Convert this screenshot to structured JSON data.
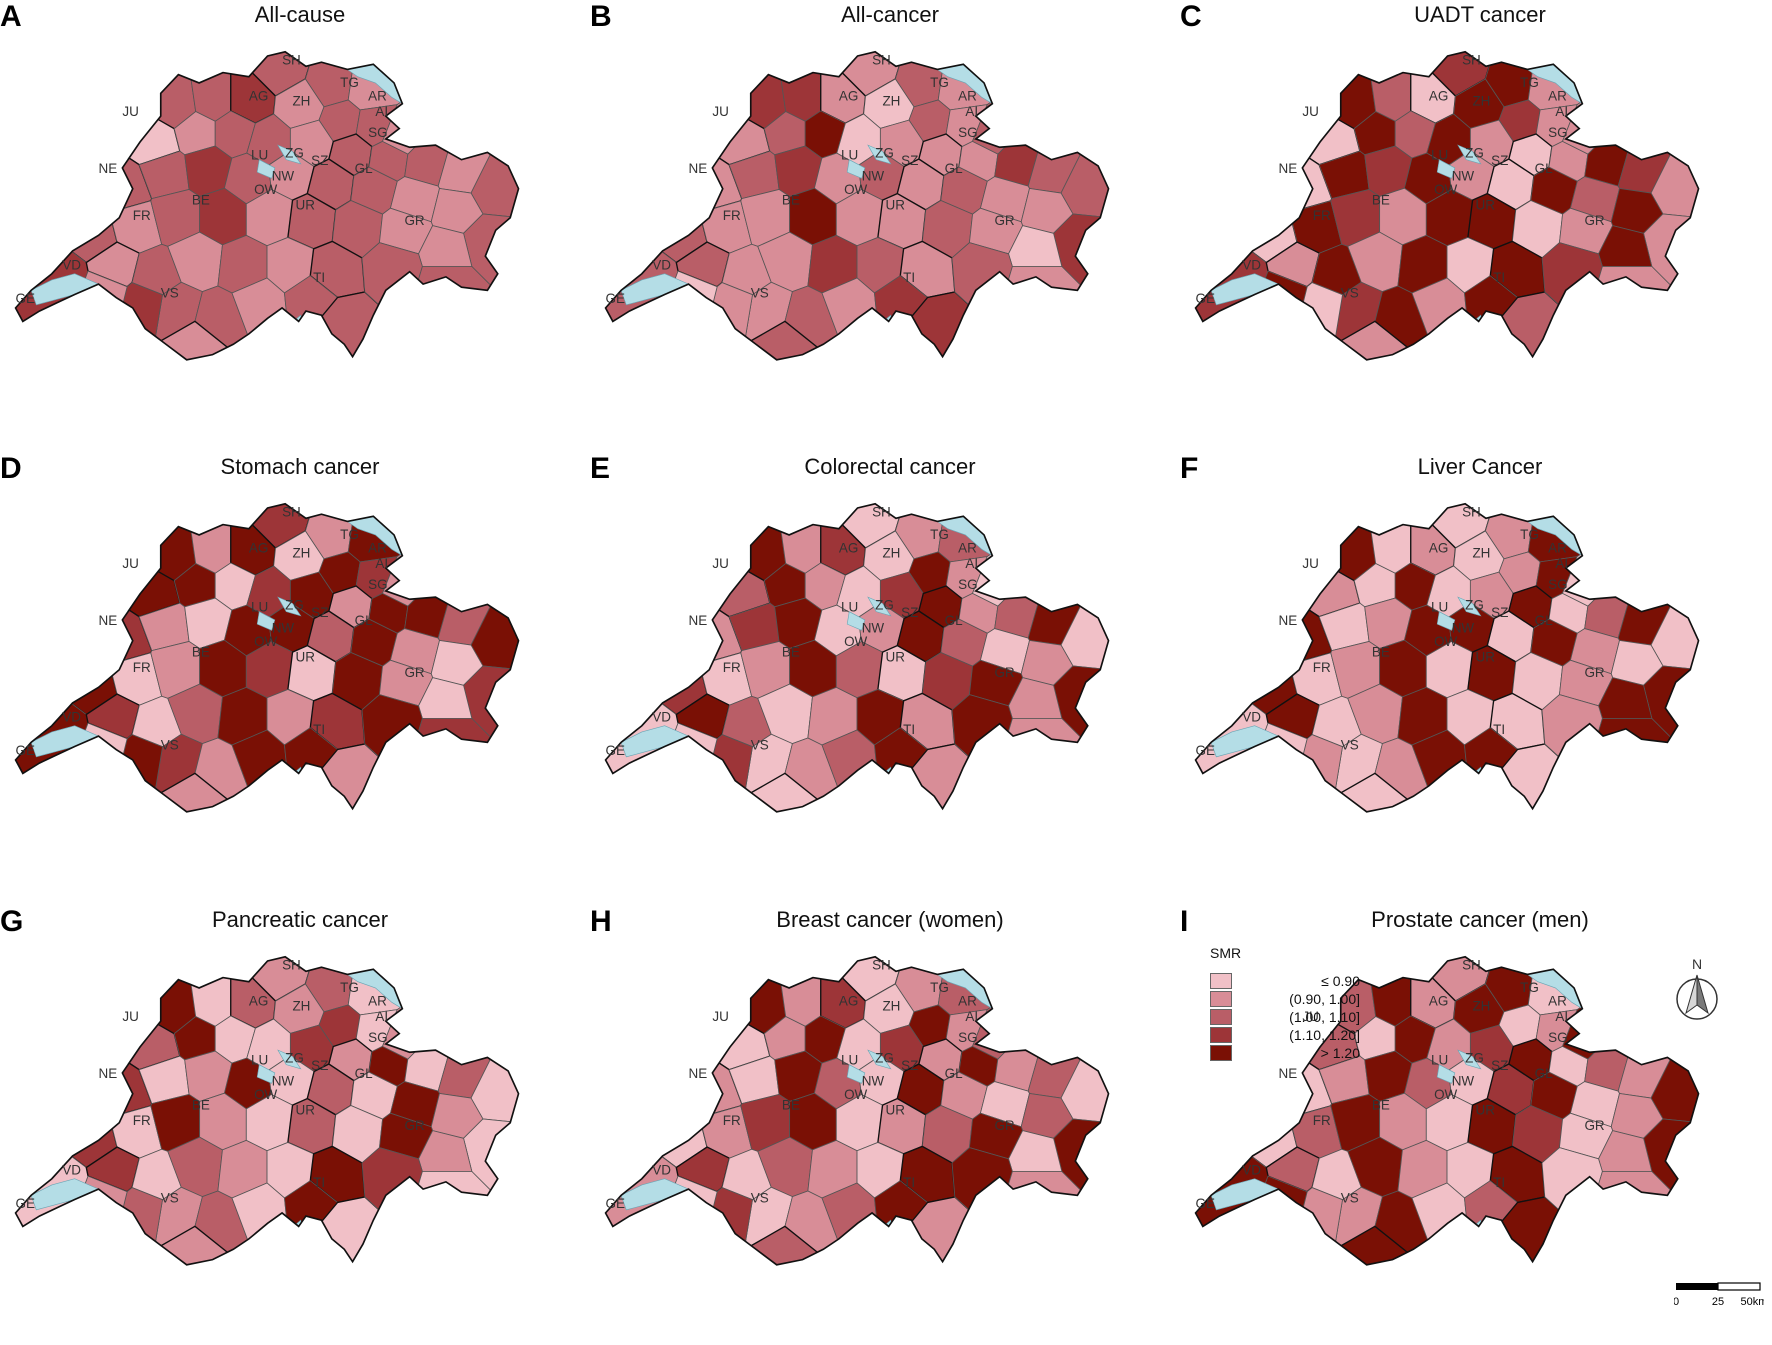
{
  "colors": {
    "c1": "#f1c0c7",
    "c2": "#d88d97",
    "c3": "#b95e67",
    "c4": "#9d3538",
    "c5": "#7a1005",
    "lake": "#b4dde6"
  },
  "panels": [
    {
      "letter": "A",
      "title": "All-cause"
    },
    {
      "letter": "B",
      "title": "All-cancer"
    },
    {
      "letter": "C",
      "title": "UADT cancer"
    },
    {
      "letter": "D",
      "title": "Stomach cancer"
    },
    {
      "letter": "E",
      "title": "Colorectal cancer"
    },
    {
      "letter": "F",
      "title": "Liver Cancer"
    },
    {
      "letter": "G",
      "title": "Pancreatic cancer"
    },
    {
      "letter": "H",
      "title": "Breast cancer (women)"
    },
    {
      "letter": "I",
      "title": "Prostate cancer (men)"
    }
  ],
  "canton_labels": [
    "SH",
    "TG",
    "JU",
    "AG",
    "ZH",
    "AR",
    "AI",
    "SG",
    "NE",
    "LU",
    "ZG",
    "SZ",
    "GL",
    "BE",
    "OW",
    "NW",
    "UR",
    "GR",
    "FR",
    "VD",
    "TI",
    "VS",
    "GE"
  ],
  "legend": {
    "title": "SMR",
    "classes": [
      "≤ 0.90",
      "(0.90, 1.00]",
      "(1.00, 1.10]",
      "(1.10, 1.20]",
      "> 1.20"
    ]
  },
  "north_label": "N",
  "scale": {
    "labels": [
      "0",
      "25",
      "50km"
    ]
  },
  "region_levels": [
    [
      3,
      3,
      2,
      3,
      3,
      4,
      2,
      3,
      3,
      2,
      1,
      2,
      3,
      3,
      2,
      3,
      3,
      3,
      2,
      3,
      3,
      3,
      4,
      3,
      2,
      3,
      3,
      2,
      2,
      3,
      3,
      2,
      3,
      4,
      2,
      3,
      3,
      2,
      2,
      4,
      2,
      3,
      2,
      3,
      2,
      3
    ],
    [
      2,
      3,
      2,
      4,
      4,
      2,
      1,
      3,
      2,
      3,
      2,
      3,
      5,
      1,
      2,
      2,
      2,
      4,
      3,
      3,
      2,
      3,
      4,
      2,
      3,
      2,
      3,
      2,
      2,
      4,
      3,
      2,
      2,
      5,
      2,
      2,
      3,
      2,
      1,
      3,
      3,
      2,
      2,
      4,
      3,
      2
    ],
    [
      4,
      5,
      2,
      5,
      3,
      1,
      5,
      4,
      2,
      2,
      1,
      5,
      3,
      5,
      2,
      1,
      2,
      5,
      4,
      2,
      1,
      5,
      4,
      5,
      2,
      1,
      5,
      3,
      5,
      2,
      1,
      5,
      4,
      2,
      5,
      5,
      1,
      2,
      5,
      4,
      2,
      5,
      2,
      5,
      1,
      5
    ],
    [
      4,
      2,
      5,
      5,
      2,
      5,
      1,
      5,
      4,
      2,
      5,
      5,
      1,
      4,
      5,
      2,
      5,
      5,
      3,
      5,
      4,
      2,
      1,
      5,
      5,
      3,
      5,
      2,
      1,
      4,
      5,
      1,
      2,
      5,
      4,
      1,
      5,
      2,
      1,
      5,
      4,
      1,
      3,
      5,
      2,
      4
    ],
    [
      1,
      2,
      3,
      5,
      2,
      4,
      1,
      5,
      2,
      1,
      3,
      5,
      2,
      1,
      4,
      5,
      2,
      3,
      5,
      1,
      2,
      4,
      5,
      1,
      2,
      5,
      3,
      1,
      2,
      5,
      4,
      1,
      2,
      5,
      3,
      1,
      4,
      5,
      2,
      1,
      5,
      3,
      1,
      2,
      5,
      2
    ],
    [
      1,
      2,
      5,
      5,
      1,
      2,
      1,
      2,
      5,
      1,
      2,
      1,
      5,
      1,
      2,
      5,
      1,
      3,
      5,
      1,
      5,
      1,
      2,
      5,
      5,
      1,
      5,
      2,
      1,
      5,
      5,
      1,
      2,
      5,
      1,
      5,
      1,
      2,
      5,
      1,
      5,
      1,
      2,
      5,
      1,
      1
    ],
    [
      2,
      3,
      1,
      5,
      1,
      3,
      2,
      4,
      1,
      2,
      3,
      5,
      1,
      1,
      4,
      2,
      5,
      1,
      3,
      1,
      4,
      1,
      2,
      5,
      1,
      3,
      1,
      5,
      2,
      1,
      4,
      1,
      5,
      2,
      1,
      3,
      1,
      5,
      2,
      1,
      4,
      1,
      3,
      2,
      1,
      5
    ],
    [
      1,
      2,
      3,
      5,
      2,
      4,
      1,
      5,
      2,
      3,
      1,
      2,
      5,
      1,
      4,
      2,
      5,
      2,
      3,
      1,
      2,
      1,
      5,
      3,
      1,
      5,
      2,
      1,
      3,
      5,
      1,
      2,
      4,
      5,
      1,
      2,
      3,
      5,
      1,
      2,
      4,
      1,
      3,
      2,
      1,
      5
    ],
    [
      2,
      5,
      1,
      3,
      5,
      2,
      5,
      1,
      2,
      5,
      3,
      1,
      5,
      2,
      4,
      5,
      1,
      3,
      2,
      5,
      1,
      2,
      5,
      3,
      1,
      4,
      5,
      1,
      2,
      5,
      1,
      3,
      5,
      2,
      1,
      5,
      4,
      1,
      2,
      5,
      3,
      1,
      5,
      2,
      1,
      5
    ]
  ]
}
